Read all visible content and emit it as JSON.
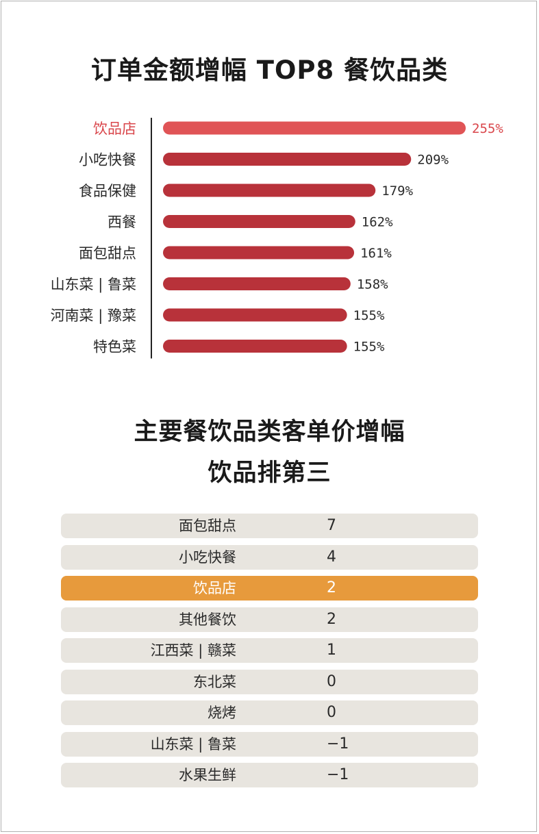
{
  "chart_data": [
    {
      "type": "bar",
      "orientation": "horizontal",
      "title": "订单金额增幅 TOP8 餐饮品类",
      "categories": [
        "饮品店",
        "小吃快餐",
        "食品保健",
        "西餐",
        "面包甜点",
        "山东菜 | 鲁菜",
        "河南菜 | 豫菜",
        "特色菜"
      ],
      "values": [
        255,
        209,
        179,
        162,
        161,
        158,
        155,
        155
      ],
      "value_labels": [
        "255%",
        "209%",
        "179%",
        "162%",
        "161%",
        "158%",
        "155%",
        "155%"
      ],
      "unit": "%",
      "highlight_index": 0,
      "colors": {
        "highlight": "#e05456",
        "bar": "#b8323a",
        "highlight_text": "#d9454a",
        "text": "#2a2a2a",
        "axis": "#222222"
      }
    },
    {
      "type": "table",
      "title_lines": [
        "主要餐饮品类客单价增幅",
        "饮品排第三"
      ],
      "rows": [
        {
          "name": "面包甜点",
          "value": "7"
        },
        {
          "name": "小吃快餐",
          "value": "4"
        },
        {
          "name": "饮品店",
          "value": "2",
          "highlight": true
        },
        {
          "name": "其他餐饮",
          "value": "2"
        },
        {
          "name": "江西菜 | 赣菜",
          "value": "1"
        },
        {
          "name": "东北菜",
          "value": "0"
        },
        {
          "name": "烧烤",
          "value": "0"
        },
        {
          "name": "山东菜 | 鲁菜",
          "value": "−1"
        },
        {
          "name": "水果生鲜",
          "value": "−1"
        }
      ],
      "colors": {
        "row_bg": "#e8e5df",
        "highlight_bg": "#e79a3c"
      }
    }
  ]
}
